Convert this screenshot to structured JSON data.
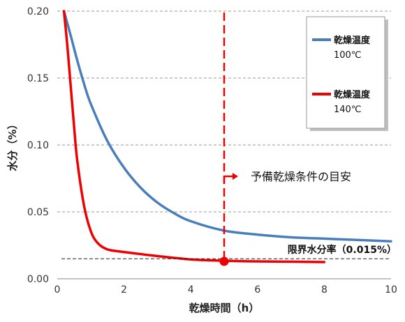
{
  "chart_data": {
    "type": "line",
    "xlabel": "乾燥時間（h）",
    "ylabel": "水分（%）",
    "xlim": [
      0,
      10
    ],
    "ylim": [
      0,
      0.2
    ],
    "x_ticks": [
      "0",
      "2",
      "4",
      "6",
      "8",
      "10"
    ],
    "y_ticks": [
      "0.00",
      "0.05",
      "0.10",
      "0.15",
      "0.20"
    ],
    "grid": "horizontal dashed",
    "legend_position": "top-right",
    "series": [
      {
        "name": "乾燥温度 100℃",
        "name_line1": "乾燥温度",
        "name_line2": "100℃",
        "color": "#4a7ebb",
        "points": [
          [
            0.2,
            0.2
          ],
          [
            0.4,
            0.182
          ],
          [
            0.6,
            0.163
          ],
          [
            0.8,
            0.146
          ],
          [
            1.0,
            0.131
          ],
          [
            1.5,
            0.103
          ],
          [
            2.0,
            0.083
          ],
          [
            2.5,
            0.068
          ],
          [
            3.0,
            0.057
          ],
          [
            3.5,
            0.049
          ],
          [
            4.0,
            0.043
          ],
          [
            5.0,
            0.036
          ],
          [
            6.0,
            0.033
          ],
          [
            7.0,
            0.031
          ],
          [
            8.0,
            0.03
          ],
          [
            9.0,
            0.029
          ],
          [
            10.0,
            0.028
          ]
        ]
      },
      {
        "name": "乾燥温度 140℃",
        "name_line1": "乾燥温度",
        "name_line2": "140℃",
        "color": "#ee0000",
        "points": [
          [
            0.2,
            0.2
          ],
          [
            0.3,
            0.175
          ],
          [
            0.4,
            0.145
          ],
          [
            0.5,
            0.115
          ],
          [
            0.6,
            0.088
          ],
          [
            0.8,
            0.055
          ],
          [
            1.0,
            0.036
          ],
          [
            1.2,
            0.027
          ],
          [
            1.5,
            0.022
          ],
          [
            2.0,
            0.02
          ],
          [
            3.0,
            0.017
          ],
          [
            4.0,
            0.0145
          ],
          [
            5.0,
            0.0135
          ],
          [
            6.0,
            0.013
          ],
          [
            7.0,
            0.0128
          ],
          [
            8.0,
            0.0125
          ]
        ]
      }
    ],
    "threshold": {
      "value": 0.015,
      "label": "限界水分率（0.015%）"
    },
    "marker": {
      "x": 5.0,
      "y": 0.013,
      "color": "#ee0000"
    },
    "vline": {
      "x": 5.0,
      "color": "#ee0000"
    },
    "annotation": {
      "label": "予備乾燥条件の目安"
    }
  }
}
